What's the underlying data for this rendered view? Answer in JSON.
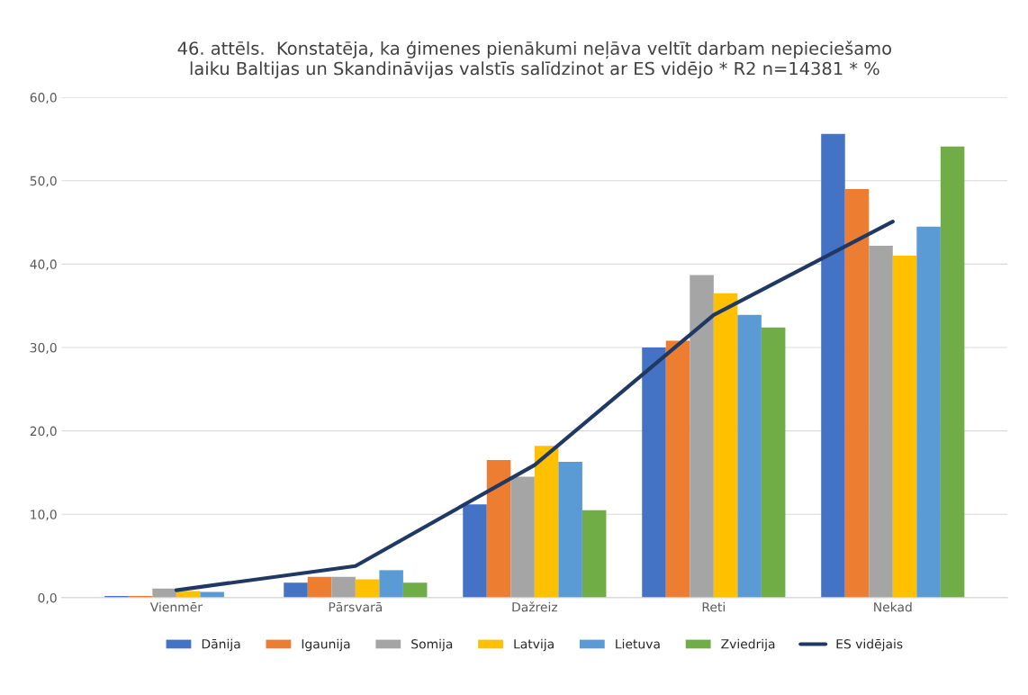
{
  "chart_data": {
    "type": "bar",
    "title": "46. attēls.  Konstatēja, ka ģimenes pienākumi neļāva veltīt darbam nepieciešamo\nlaiku Baltijas un Skandināvijas valstīs salīdzinot ar ES vidējo * R2 n=14381 * %",
    "categories": [
      "Vienmēr",
      "Pārsvarā",
      "Dažreiz",
      "Reti",
      "Nekad"
    ],
    "series": [
      {
        "name": "Dānija",
        "color": "#4472c4",
        "values": [
          0.2,
          1.8,
          11.2,
          30.0,
          55.6
        ]
      },
      {
        "name": "Igaunija",
        "color": "#ed7d31",
        "values": [
          0.2,
          2.5,
          16.5,
          30.8,
          49.0
        ]
      },
      {
        "name": "Somija",
        "color": "#a5a5a5",
        "values": [
          1.1,
          2.5,
          14.5,
          38.7,
          42.2
        ]
      },
      {
        "name": "Latvija",
        "color": "#ffc000",
        "values": [
          0.8,
          2.2,
          18.2,
          36.5,
          41.0
        ]
      },
      {
        "name": "Lietuva",
        "color": "#5b9bd5",
        "values": [
          0.7,
          3.3,
          16.3,
          33.9,
          44.5
        ]
      },
      {
        "name": "Zviedrija",
        "color": "#70ad47",
        "values": [
          null,
          1.8,
          10.5,
          32.4,
          54.1
        ]
      },
      {
        "name": "ES vidējais",
        "color": "#203864",
        "type": "line",
        "values": [
          0.9,
          3.8,
          15.9,
          33.9,
          45.1
        ]
      }
    ],
    "ylim": [
      0,
      60
    ],
    "yticks": [
      {
        "value": 0,
        "label": "0,0"
      },
      {
        "value": 10,
        "label": "10,0"
      },
      {
        "value": 20,
        "label": "20,0"
      },
      {
        "value": 30,
        "label": "30,0"
      },
      {
        "value": 40,
        "label": "40,0"
      },
      {
        "value": 50,
        "label": "50,0"
      },
      {
        "value": 60,
        "label": "60,0"
      }
    ],
    "grid": "y",
    "legend": "bottom"
  }
}
